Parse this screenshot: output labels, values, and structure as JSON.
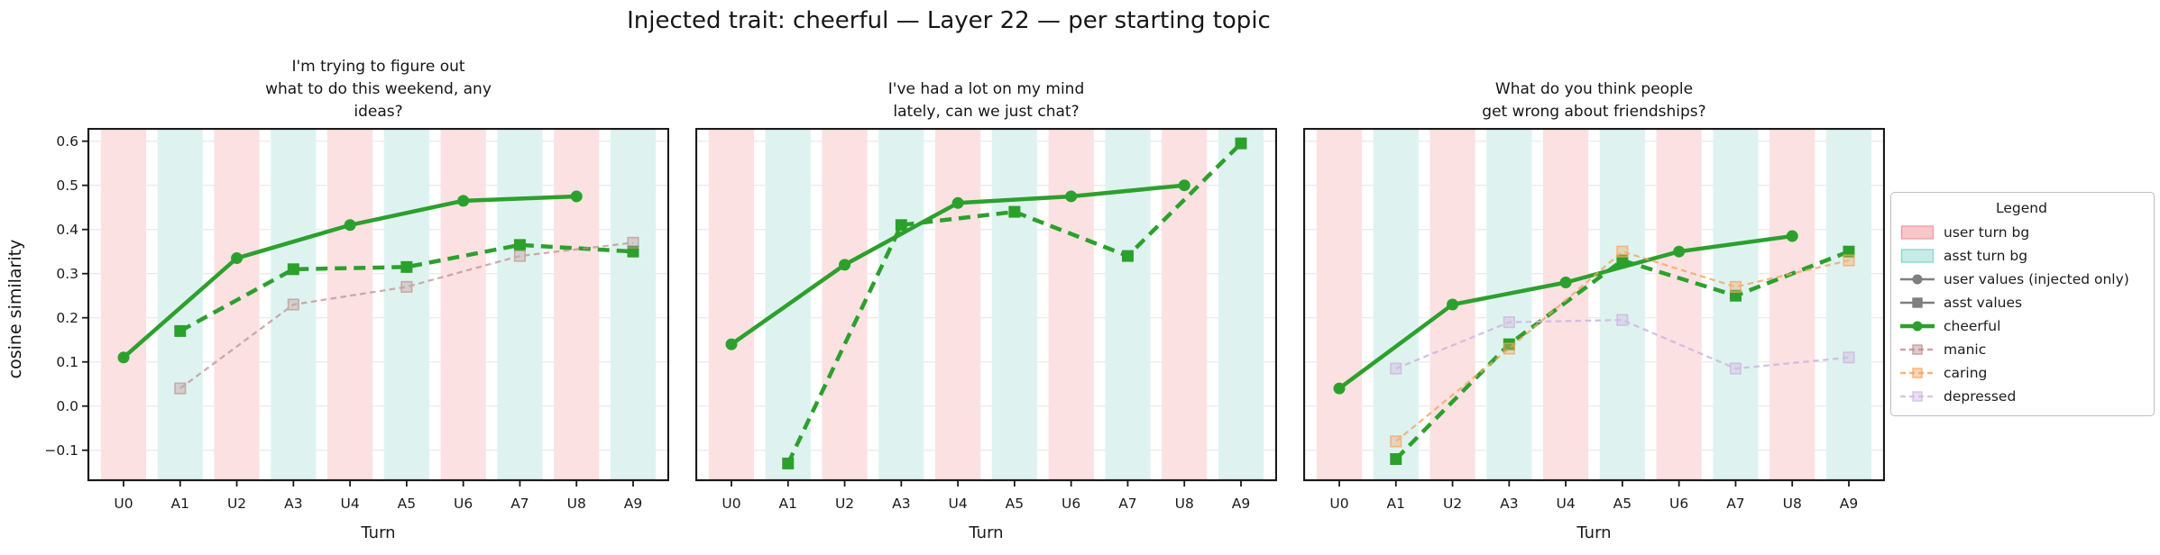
{
  "suptitle": "Injected trait: cheerful — Layer 22 — per starting topic",
  "yaxis_label": "cosine similarity",
  "xaxis_label": "Turn",
  "colors": {
    "axis": "#1a1a1a",
    "text": "#1c1c1c",
    "grid": "#ebebeb",
    "gray": "#7f7f7f",
    "cheerful": "#2ca02c",
    "manic": "#bc8f8f",
    "caring": "#f4a460",
    "depressed": "#cfb8e0",
    "user_bg_fill": "#fbe1e2",
    "user_bg_legend": "#f9c6ca",
    "user_bg_edge": "#ee9ba1",
    "asst_bg_fill": "#def3f0",
    "asst_bg_legend": "#c7ece8",
    "asst_bg_edge": "#87d5cc"
  },
  "legend": {
    "title": "Legend",
    "items": [
      {
        "label": "user turn bg",
        "kind": "patch",
        "color": "user_bg"
      },
      {
        "label": "asst turn bg",
        "kind": "patch",
        "color": "asst_bg"
      },
      {
        "label": "user values (injected only)",
        "kind": "solid-circle",
        "color": "gray"
      },
      {
        "label": "asst values",
        "kind": "solid-square",
        "color": "gray"
      },
      {
        "label": "cheerful",
        "kind": "thick-circle",
        "color": "cheerful"
      },
      {
        "label": "manic",
        "kind": "dash-square",
        "color": "manic"
      },
      {
        "label": "caring",
        "kind": "dash-square",
        "color": "caring"
      },
      {
        "label": "depressed",
        "kind": "dash-square",
        "color": "depressed"
      }
    ]
  },
  "chart_data": [
    {
      "type": "line",
      "title": "I'm trying to figure out\nwhat to do this weekend, any\nideas?",
      "xlabel": "Turn",
      "ylabel": "cosine similarity",
      "x": [
        "U0",
        "A1",
        "U2",
        "A3",
        "U4",
        "A5",
        "U6",
        "A7",
        "U8",
        "A9"
      ],
      "ylim": [
        -0.17,
        0.63
      ],
      "yticks": [
        -0.1,
        0.0,
        0.1,
        0.2,
        0.3,
        0.4,
        0.5,
        0.6
      ],
      "ytick_labels": [
        "−0.1",
        "0.0",
        "0.1",
        "0.2",
        "0.3",
        "0.4",
        "0.5",
        "0.6"
      ],
      "series": [
        {
          "name": "cheerful (user values)",
          "trait": "cheerful",
          "role": "user",
          "x": [
            "U0",
            "U2",
            "U4",
            "U6",
            "U8"
          ],
          "values": [
            0.11,
            0.335,
            0.41,
            0.465,
            0.475
          ]
        },
        {
          "name": "cheerful (asst values)",
          "trait": "cheerful",
          "role": "asst",
          "x": [
            "A1",
            "A3",
            "A5",
            "A7",
            "A9"
          ],
          "values": [
            0.17,
            0.31,
            0.315,
            0.365,
            0.35
          ]
        },
        {
          "name": "manic (asst values)",
          "trait": "manic",
          "role": "asst",
          "x": [
            "A1",
            "A3",
            "A5",
            "A7",
            "A9"
          ],
          "values": [
            0.04,
            0.23,
            0.27,
            0.34,
            0.37
          ]
        }
      ]
    },
    {
      "type": "line",
      "title": "I've had a lot on my mind\nlately, can we just chat?",
      "xlabel": "Turn",
      "ylabel": "cosine similarity",
      "x": [
        "U0",
        "A1",
        "U2",
        "A3",
        "U4",
        "A5",
        "U6",
        "A7",
        "U8",
        "A9"
      ],
      "ylim": [
        -0.17,
        0.63
      ],
      "yticks": [
        -0.1,
        0.0,
        0.1,
        0.2,
        0.3,
        0.4,
        0.5,
        0.6
      ],
      "ytick_labels": [
        "−0.1",
        "0.0",
        "0.1",
        "0.2",
        "0.3",
        "0.4",
        "0.5",
        "0.6"
      ],
      "series": [
        {
          "name": "cheerful (user values)",
          "trait": "cheerful",
          "role": "user",
          "x": [
            "U0",
            "U2",
            "U4",
            "U6",
            "U8"
          ],
          "values": [
            0.14,
            0.32,
            0.46,
            0.475,
            0.5
          ]
        },
        {
          "name": "cheerful (asst values)",
          "trait": "cheerful",
          "role": "asst",
          "x": [
            "A1",
            "A3",
            "A5",
            "A7",
            "A9"
          ],
          "values": [
            -0.13,
            0.41,
            0.44,
            0.34,
            0.595
          ]
        }
      ]
    },
    {
      "type": "line",
      "title": "What do you think people\nget wrong about friendships?",
      "xlabel": "Turn",
      "ylabel": "cosine similarity",
      "x": [
        "U0",
        "A1",
        "U2",
        "A3",
        "U4",
        "A5",
        "U6",
        "A7",
        "U8",
        "A9"
      ],
      "ylim": [
        -0.17,
        0.63
      ],
      "yticks": [
        -0.1,
        0.0,
        0.1,
        0.2,
        0.3,
        0.4,
        0.5,
        0.6
      ],
      "ytick_labels": [
        "−0.1",
        "0.0",
        "0.1",
        "0.2",
        "0.3",
        "0.4",
        "0.5",
        "0.6"
      ],
      "series": [
        {
          "name": "cheerful (user values)",
          "trait": "cheerful",
          "role": "user",
          "x": [
            "U0",
            "U2",
            "U4",
            "U6",
            "U8"
          ],
          "values": [
            0.04,
            0.23,
            0.28,
            0.35,
            0.385
          ]
        },
        {
          "name": "cheerful (asst values)",
          "trait": "cheerful",
          "role": "asst",
          "x": [
            "A1",
            "A3",
            "A5",
            "A7",
            "A9"
          ],
          "values": [
            -0.12,
            0.14,
            0.33,
            0.25,
            0.35
          ]
        },
        {
          "name": "caring (asst values)",
          "trait": "caring",
          "role": "asst",
          "x": [
            "A1",
            "A3",
            "A5",
            "A7",
            "A9"
          ],
          "values": [
            -0.08,
            0.13,
            0.35,
            0.27,
            0.33
          ]
        },
        {
          "name": "depressed (asst values)",
          "trait": "depressed",
          "role": "asst",
          "x": [
            "A1",
            "A3",
            "A5",
            "A7",
            "A9"
          ],
          "values": [
            0.085,
            0.19,
            0.195,
            0.085,
            0.11
          ]
        }
      ]
    }
  ]
}
